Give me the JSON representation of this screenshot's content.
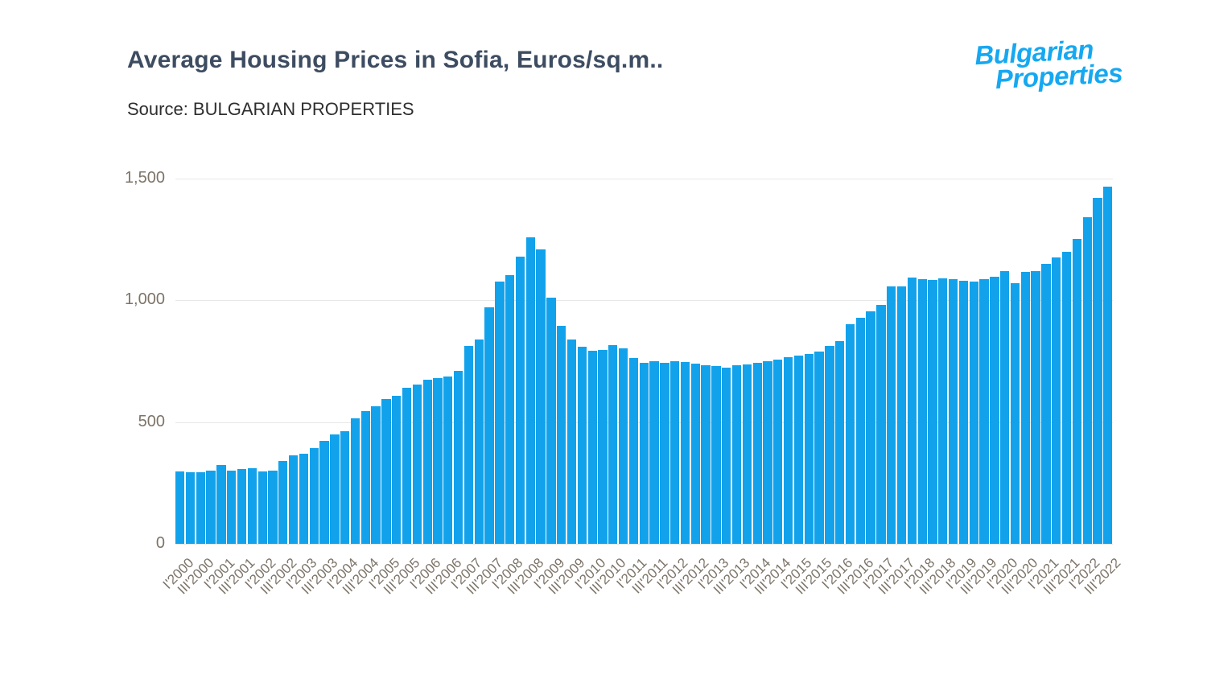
{
  "header": {
    "title": "Average Housing Prices in Sofia, Euros/sq.m..",
    "source": "Source: BULGARIAN PROPERTIES"
  },
  "logo": {
    "line1": "Bulgarian",
    "line2": "Properties",
    "color": "#16a8f1"
  },
  "chart_data": {
    "type": "bar",
    "title": "Average Housing Prices in Sofia, Euros/sq.m..",
    "source": "Source: BULGARIAN PROPERTIES",
    "ylabel": "",
    "xlabel": "",
    "ylim": [
      0,
      1500
    ],
    "grid": true,
    "legend": "none",
    "bar_color": "#12a2eb",
    "gridline_color": "#e7e7e7",
    "tick_label_color": "#7d7468",
    "yticks_values": [
      0,
      500,
      1000,
      1500
    ],
    "yticks_labels": [
      "0",
      "500",
      "1,000",
      "1,500"
    ],
    "x_tick_every": 2,
    "x_tick_labels": [
      "I'2000",
      "III'2000",
      "I'2001",
      "III'2001",
      "I'2002",
      "III'2002",
      "I'2003",
      "III'2003",
      "I'2004",
      "III'2004",
      "I'2005",
      "III'2005",
      "I'2006",
      "III'2006",
      "I'2007",
      "III'2007",
      "I'2008",
      "III'2008",
      "I'2009",
      "III'2009",
      "I'2010",
      "III'2010",
      "I'2011",
      "III'2011",
      "I'2012",
      "III'2012",
      "I'2013",
      "III'2013",
      "I'2014",
      "III'2014",
      "I'2015",
      "III'2015",
      "I'2016",
      "III'2016",
      "I'2017",
      "III'2017",
      "I'2018",
      "III'2018",
      "I'2019",
      "III'2019",
      "I'2020",
      "III'2020",
      "I'2021",
      "III'2021",
      "I'2022",
      "III'2022"
    ],
    "values": [
      297,
      295,
      293,
      300,
      324,
      301,
      306,
      311,
      297,
      302,
      341,
      365,
      369,
      392,
      424,
      449,
      463,
      515,
      545,
      564,
      595,
      609,
      640,
      655,
      674,
      680,
      688,
      710,
      813,
      838,
      970,
      1077,
      1104,
      1178,
      1260,
      1210,
      1012,
      895,
      840,
      810,
      793,
      796,
      815,
      802,
      762,
      745,
      749,
      745,
      750,
      747,
      740,
      734,
      729,
      725,
      732,
      736,
      745,
      749,
      757,
      768,
      772,
      779,
      791,
      813,
      832,
      901,
      928,
      956,
      980,
      1057,
      1057,
      1094,
      1088,
      1083,
      1090,
      1086,
      1079,
      1077,
      1088,
      1096,
      1121,
      1072,
      1116,
      1121,
      1149,
      1176,
      1198,
      1253,
      1341,
      1421,
      1468
    ]
  }
}
